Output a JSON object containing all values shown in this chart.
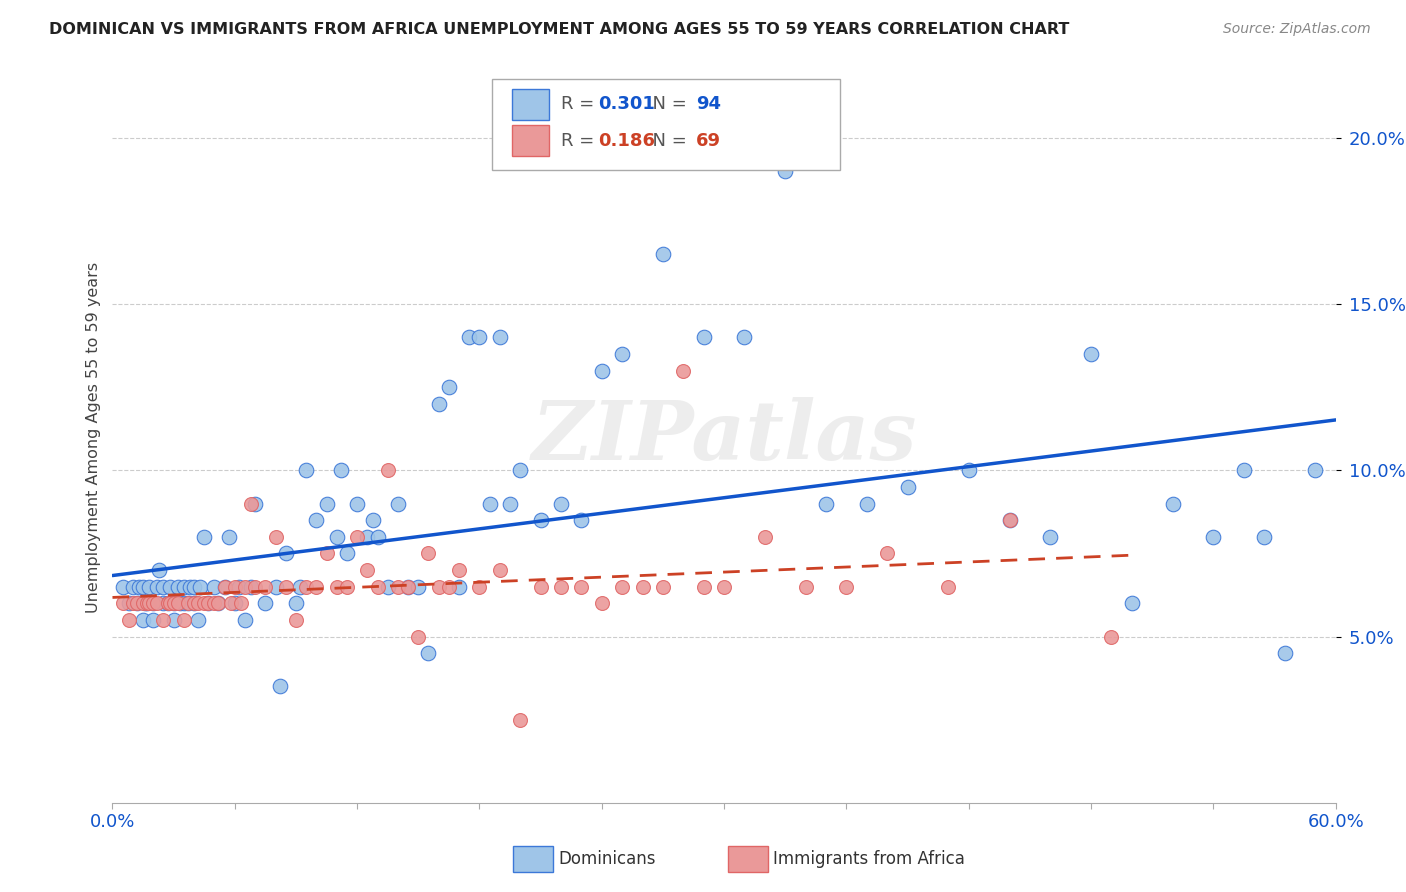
{
  "title": "DOMINICAN VS IMMIGRANTS FROM AFRICA UNEMPLOYMENT AMONG AGES 55 TO 59 YEARS CORRELATION CHART",
  "source": "Source: ZipAtlas.com",
  "ylabel": "Unemployment Among Ages 55 to 59 years",
  "xlim": [
    0.0,
    0.6
  ],
  "ylim": [
    0.0,
    0.22
  ],
  "yticks": [
    0.05,
    0.1,
    0.15,
    0.2
  ],
  "ytick_labels": [
    "5.0%",
    "10.0%",
    "15.0%",
    "20.0%"
  ],
  "xtick_labels": [
    "0.0%",
    "60.0%"
  ],
  "color_dominican": "#9fc5e8",
  "color_africa": "#ea9999",
  "edge_dominican": "#3c78d8",
  "edge_africa": "#e06666",
  "color_line_dominican": "#1155cc",
  "color_line_africa": "#cc4125",
  "R_dominican": 0.301,
  "N_dominican": 94,
  "R_africa": 0.186,
  "N_africa": 69,
  "watermark": "ZIPatlas",
  "dominican_x": [
    0.005,
    0.008,
    0.01,
    0.012,
    0.013,
    0.015,
    0.015,
    0.016,
    0.017,
    0.018,
    0.02,
    0.02,
    0.022,
    0.023,
    0.025,
    0.025,
    0.027,
    0.028,
    0.03,
    0.03,
    0.032,
    0.033,
    0.035,
    0.035,
    0.037,
    0.038,
    0.04,
    0.04,
    0.042,
    0.043,
    0.045,
    0.047,
    0.05,
    0.052,
    0.055,
    0.057,
    0.06,
    0.062,
    0.065,
    0.068,
    0.07,
    0.075,
    0.08,
    0.082,
    0.085,
    0.09,
    0.092,
    0.095,
    0.1,
    0.105,
    0.11,
    0.112,
    0.115,
    0.12,
    0.125,
    0.128,
    0.13,
    0.135,
    0.14,
    0.145,
    0.15,
    0.155,
    0.16,
    0.165,
    0.17,
    0.175,
    0.18,
    0.185,
    0.19,
    0.195,
    0.2,
    0.21,
    0.22,
    0.23,
    0.24,
    0.25,
    0.27,
    0.29,
    0.31,
    0.33,
    0.35,
    0.37,
    0.39,
    0.42,
    0.44,
    0.46,
    0.48,
    0.5,
    0.52,
    0.54,
    0.555,
    0.565,
    0.575,
    0.59
  ],
  "dominican_y": [
    0.065,
    0.06,
    0.065,
    0.06,
    0.065,
    0.055,
    0.065,
    0.06,
    0.06,
    0.065,
    0.055,
    0.06,
    0.065,
    0.07,
    0.06,
    0.065,
    0.06,
    0.065,
    0.055,
    0.06,
    0.065,
    0.06,
    0.06,
    0.065,
    0.06,
    0.065,
    0.06,
    0.065,
    0.055,
    0.065,
    0.08,
    0.06,
    0.065,
    0.06,
    0.065,
    0.08,
    0.06,
    0.065,
    0.055,
    0.065,
    0.09,
    0.06,
    0.065,
    0.035,
    0.075,
    0.06,
    0.065,
    0.1,
    0.085,
    0.09,
    0.08,
    0.1,
    0.075,
    0.09,
    0.08,
    0.085,
    0.08,
    0.065,
    0.09,
    0.065,
    0.065,
    0.045,
    0.12,
    0.125,
    0.065,
    0.14,
    0.14,
    0.09,
    0.14,
    0.09,
    0.1,
    0.085,
    0.09,
    0.085,
    0.13,
    0.135,
    0.165,
    0.14,
    0.14,
    0.19,
    0.09,
    0.09,
    0.095,
    0.1,
    0.085,
    0.08,
    0.135,
    0.06,
    0.09,
    0.08,
    0.1,
    0.08,
    0.045,
    0.1
  ],
  "africa_x": [
    0.005,
    0.008,
    0.01,
    0.012,
    0.015,
    0.017,
    0.018,
    0.02,
    0.022,
    0.025,
    0.027,
    0.028,
    0.03,
    0.032,
    0.035,
    0.037,
    0.04,
    0.042,
    0.045,
    0.047,
    0.05,
    0.052,
    0.055,
    0.058,
    0.06,
    0.063,
    0.065,
    0.068,
    0.07,
    0.075,
    0.08,
    0.085,
    0.09,
    0.095,
    0.1,
    0.105,
    0.11,
    0.115,
    0.12,
    0.125,
    0.13,
    0.135,
    0.14,
    0.145,
    0.15,
    0.155,
    0.16,
    0.165,
    0.17,
    0.18,
    0.19,
    0.2,
    0.21,
    0.22,
    0.23,
    0.24,
    0.25,
    0.26,
    0.27,
    0.28,
    0.29,
    0.3,
    0.32,
    0.34,
    0.36,
    0.38,
    0.41,
    0.44,
    0.49
  ],
  "africa_y": [
    0.06,
    0.055,
    0.06,
    0.06,
    0.06,
    0.06,
    0.06,
    0.06,
    0.06,
    0.055,
    0.06,
    0.06,
    0.06,
    0.06,
    0.055,
    0.06,
    0.06,
    0.06,
    0.06,
    0.06,
    0.06,
    0.06,
    0.065,
    0.06,
    0.065,
    0.06,
    0.065,
    0.09,
    0.065,
    0.065,
    0.08,
    0.065,
    0.055,
    0.065,
    0.065,
    0.075,
    0.065,
    0.065,
    0.08,
    0.07,
    0.065,
    0.1,
    0.065,
    0.065,
    0.05,
    0.075,
    0.065,
    0.065,
    0.07,
    0.065,
    0.07,
    0.025,
    0.065,
    0.065,
    0.065,
    0.06,
    0.065,
    0.065,
    0.065,
    0.13,
    0.065,
    0.065,
    0.08,
    0.065,
    0.065,
    0.075,
    0.065,
    0.085,
    0.05
  ]
}
